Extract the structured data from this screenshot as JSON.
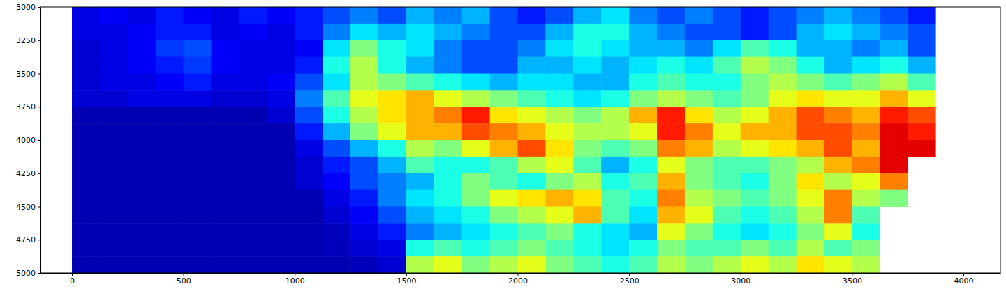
{
  "chart_data": {
    "type": "heatmap",
    "x_edges": [
      0,
      125,
      250,
      375,
      500,
      625,
      750,
      875,
      1000,
      1125,
      1250,
      1375,
      1500,
      1625,
      1750,
      1875,
      2000,
      2125,
      2250,
      2375,
      2500,
      2625,
      2750,
      2875,
      3000,
      3125,
      3250,
      3375,
      3500,
      3625,
      3750,
      3875
    ],
    "y_edges": [
      3000,
      3125,
      3250,
      3375,
      3500,
      3625,
      3750,
      3875,
      4000,
      4125,
      4250,
      4375,
      4500,
      4625,
      4750,
      4875,
      5000
    ],
    "cells": [
      [
        0.1,
        0.12,
        0.1,
        0.15,
        0.12,
        0.1,
        0.15,
        0.12,
        0.15,
        0.2,
        0.25,
        0.2,
        0.3,
        0.25,
        0.3,
        0.2,
        0.15,
        0.2,
        0.3,
        0.35,
        0.25,
        0.2,
        0.25,
        0.2,
        0.15,
        0.2,
        0.25,
        0.3,
        0.25,
        0.2,
        0.15
      ],
      [
        0.1,
        0.1,
        0.12,
        0.15,
        0.15,
        0.1,
        0.12,
        0.1,
        0.15,
        0.25,
        0.35,
        0.3,
        0.35,
        0.3,
        0.25,
        0.2,
        0.2,
        0.3,
        0.4,
        0.4,
        0.3,
        0.25,
        0.2,
        0.2,
        0.15,
        0.2,
        0.3,
        0.35,
        0.3,
        0.25,
        0.2
      ],
      [
        0.08,
        0.1,
        0.12,
        0.18,
        0.2,
        0.12,
        0.1,
        0.1,
        0.12,
        0.35,
        0.5,
        0.4,
        0.35,
        0.25,
        0.2,
        0.2,
        0.25,
        0.35,
        0.4,
        0.35,
        0.3,
        0.3,
        0.25,
        0.35,
        0.45,
        0.4,
        0.3,
        0.3,
        0.25,
        0.3,
        0.2
      ],
      [
        0.08,
        0.1,
        0.12,
        0.15,
        0.18,
        0.12,
        0.1,
        0.1,
        0.15,
        0.4,
        0.55,
        0.4,
        0.3,
        0.25,
        0.2,
        0.2,
        0.3,
        0.3,
        0.35,
        0.3,
        0.35,
        0.4,
        0.35,
        0.45,
        0.55,
        0.5,
        0.4,
        0.3,
        0.35,
        0.4,
        0.3
      ],
      [
        0.08,
        0.1,
        0.1,
        0.12,
        0.15,
        0.1,
        0.1,
        0.12,
        0.2,
        0.35,
        0.55,
        0.5,
        0.45,
        0.4,
        0.35,
        0.3,
        0.35,
        0.35,
        0.3,
        0.3,
        0.4,
        0.45,
        0.4,
        0.4,
        0.5,
        0.55,
        0.5,
        0.45,
        0.5,
        0.55,
        0.45
      ],
      [
        0.08,
        0.08,
        0.1,
        0.1,
        0.1,
        0.08,
        0.08,
        0.1,
        0.25,
        0.45,
        0.6,
        0.65,
        0.7,
        0.6,
        0.55,
        0.5,
        0.45,
        0.4,
        0.35,
        0.4,
        0.5,
        0.55,
        0.5,
        0.45,
        0.5,
        0.6,
        0.65,
        0.6,
        0.6,
        0.7,
        0.6
      ],
      [
        0.05,
        0.05,
        0.05,
        0.05,
        0.05,
        0.05,
        0.05,
        0.08,
        0.2,
        0.4,
        0.55,
        0.65,
        0.7,
        0.75,
        0.85,
        0.65,
        0.6,
        0.55,
        0.5,
        0.55,
        0.7,
        0.85,
        0.65,
        0.55,
        0.6,
        0.7,
        0.8,
        0.75,
        0.7,
        0.85,
        0.8
      ],
      [
        0.05,
        0.05,
        0.05,
        0.05,
        0.05,
        0.05,
        0.05,
        0.05,
        0.15,
        0.3,
        0.5,
        0.6,
        0.7,
        0.7,
        0.8,
        0.75,
        0.7,
        0.6,
        0.55,
        0.55,
        0.6,
        0.85,
        0.75,
        0.6,
        0.7,
        0.7,
        0.8,
        0.8,
        0.75,
        0.9,
        0.85
      ],
      [
        0.05,
        0.05,
        0.05,
        0.05,
        0.05,
        0.05,
        0.05,
        0.05,
        0.1,
        0.2,
        0.3,
        0.4,
        0.55,
        0.5,
        0.6,
        0.7,
        0.8,
        0.65,
        0.5,
        0.45,
        0.5,
        0.75,
        0.7,
        0.55,
        0.6,
        0.65,
        0.7,
        0.8,
        0.7,
        0.9,
        0.9
      ],
      [
        0.05,
        0.05,
        0.05,
        0.05,
        0.05,
        0.05,
        0.05,
        0.05,
        0.08,
        0.15,
        0.2,
        0.3,
        0.45,
        0.4,
        0.4,
        0.45,
        0.55,
        0.6,
        0.45,
        0.3,
        0.4,
        0.6,
        0.5,
        0.45,
        0.45,
        0.5,
        0.55,
        0.7,
        0.75,
        0.9,
        null
      ],
      [
        0.05,
        0.05,
        0.05,
        0.05,
        0.05,
        0.05,
        0.05,
        0.05,
        0.08,
        0.12,
        0.2,
        0.25,
        0.3,
        0.4,
        0.5,
        0.45,
        0.4,
        0.5,
        0.55,
        0.4,
        0.45,
        0.7,
        0.5,
        0.45,
        0.4,
        0.5,
        0.65,
        0.55,
        0.6,
        0.75,
        null
      ],
      [
        0.05,
        0.05,
        0.05,
        0.05,
        0.05,
        0.05,
        0.05,
        0.05,
        0.05,
        0.1,
        0.15,
        0.25,
        0.35,
        0.4,
        0.5,
        0.6,
        0.65,
        0.7,
        0.65,
        0.45,
        0.4,
        0.75,
        0.55,
        0.5,
        0.45,
        0.5,
        0.6,
        0.75,
        0.55,
        0.5,
        null
      ],
      [
        0.05,
        0.05,
        0.05,
        0.05,
        0.05,
        0.05,
        0.05,
        0.05,
        0.05,
        0.08,
        0.12,
        0.2,
        0.3,
        0.35,
        0.4,
        0.5,
        0.55,
        0.6,
        0.7,
        0.45,
        0.35,
        0.7,
        0.6,
        0.45,
        0.4,
        0.45,
        0.55,
        0.75,
        0.45,
        null,
        null
      ],
      [
        0.05,
        0.05,
        0.05,
        0.05,
        0.05,
        0.05,
        0.05,
        0.05,
        0.05,
        0.06,
        0.1,
        0.15,
        0.25,
        0.3,
        0.35,
        0.4,
        0.45,
        0.5,
        0.4,
        0.35,
        0.3,
        0.6,
        0.5,
        0.4,
        0.35,
        0.4,
        0.5,
        0.6,
        0.4,
        null,
        null
      ],
      [
        0.05,
        0.05,
        0.05,
        0.05,
        0.05,
        0.05,
        0.05,
        0.05,
        0.05,
        0.06,
        0.08,
        0.1,
        0.4,
        0.45,
        0.4,
        0.45,
        0.5,
        0.45,
        0.4,
        0.35,
        0.4,
        0.5,
        0.45,
        0.45,
        0.5,
        0.45,
        0.55,
        0.45,
        0.5,
        null,
        null
      ],
      [
        0.05,
        0.05,
        0.05,
        0.05,
        0.05,
        0.05,
        0.05,
        0.05,
        0.05,
        0.05,
        0.06,
        0.08,
        0.55,
        0.6,
        0.5,
        0.55,
        0.6,
        0.5,
        0.45,
        0.4,
        0.45,
        0.55,
        0.5,
        0.55,
        0.6,
        0.55,
        0.65,
        0.6,
        0.55,
        null,
        null
      ]
    ],
    "zlim": [
      0,
      1
    ],
    "xlim": [
      -141,
      4166
    ],
    "ylim": [
      3000,
      5000
    ],
    "xticks": [
      0,
      500,
      1000,
      1500,
      2000,
      2500,
      3000,
      3500,
      4000
    ],
    "yticks": [
      3000,
      3250,
      3500,
      3750,
      4000,
      4250,
      4500,
      4750,
      5000
    ]
  }
}
